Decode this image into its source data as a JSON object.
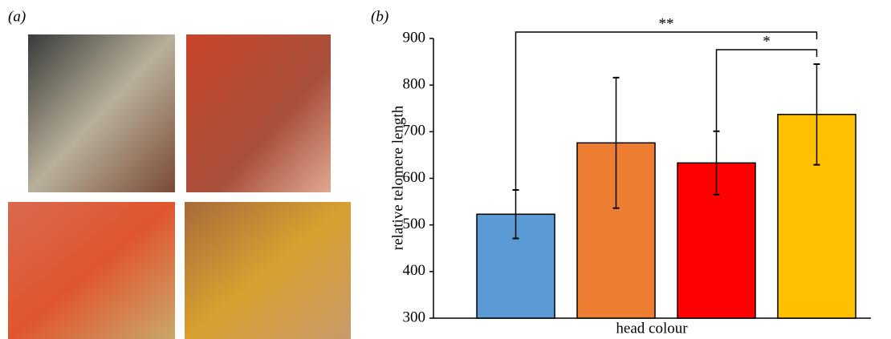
{
  "panel_labels": [
    "(a)",
    "(b)"
  ],
  "chart_data": {
    "type": "bar",
    "ylabel": "relative telomere length",
    "xlabel": "head colour",
    "categories": [
      null,
      null,
      null,
      null
    ],
    "values": [
      523,
      676,
      633,
      737
    ],
    "errors": [
      52,
      140,
      68,
      108
    ],
    "colors": [
      "#5b9bd5",
      "#ed7d31",
      "#ff0000",
      "#ffc000"
    ],
    "ylim": [
      300,
      900
    ],
    "yticks": [
      300,
      400,
      500,
      600,
      700,
      800,
      900
    ],
    "grid": false,
    "annotations": [
      {
        "text": "**",
        "between": [
          0,
          3
        ]
      },
      {
        "text": "*",
        "between": [
          2,
          3
        ]
      }
    ]
  }
}
